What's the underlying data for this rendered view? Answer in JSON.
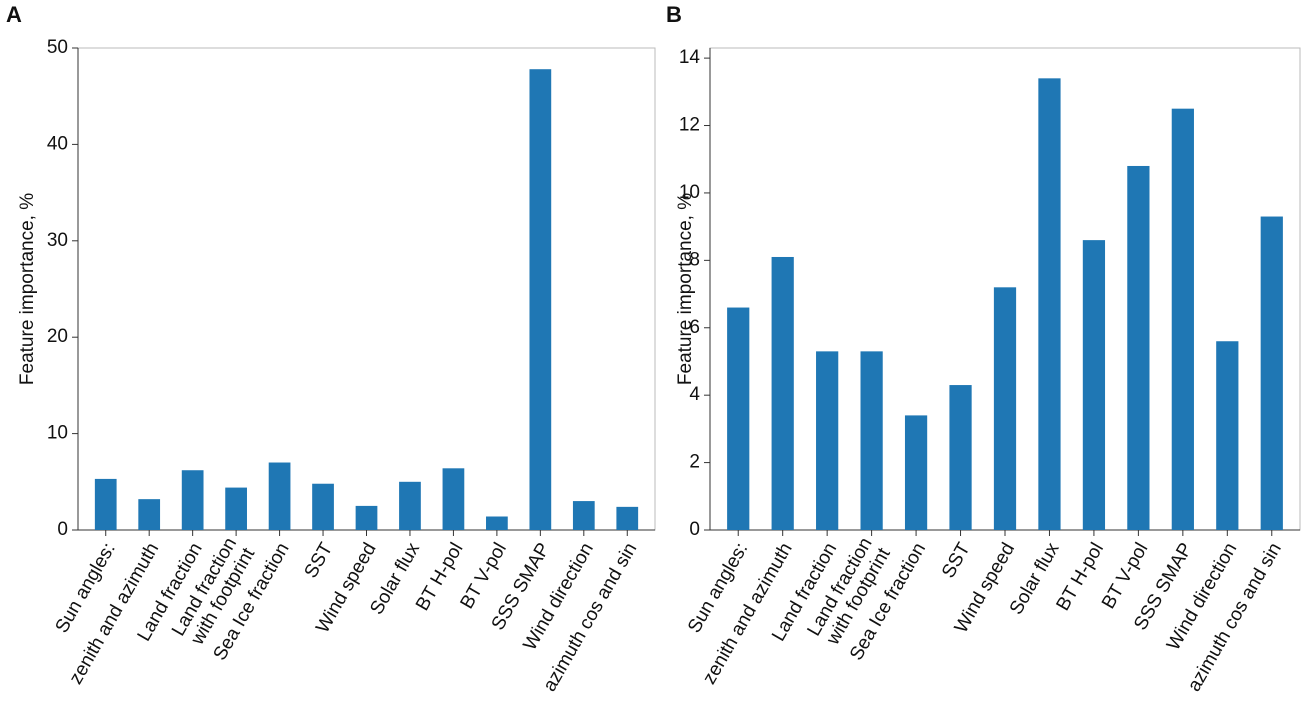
{
  "chart_data": [
    {
      "type": "bar",
      "panel": "A",
      "y_label": "Feature importance, %",
      "color": "#1f77b4",
      "categories": [
        [
          "Sun angles:"
        ],
        [
          "zenith and azimuth"
        ],
        [
          "Land fraction"
        ],
        [
          "Land fraction",
          "with footprint"
        ],
        [
          "Sea Ice fraction"
        ],
        [
          "SST"
        ],
        [
          "Wind speed"
        ],
        [
          "Solar flux"
        ],
        [
          "BT H-pol"
        ],
        [
          "BT V-pol"
        ],
        [
          "SSS SMAP"
        ],
        [
          "Wind direction"
        ],
        [
          "azimuth cos and sin"
        ]
      ],
      "values": [
        5.3,
        3.2,
        6.2,
        4.4,
        7.0,
        4.8,
        2.5,
        5.0,
        6.4,
        1.4,
        47.8,
        3.0,
        2.4
      ],
      "ylim": [
        0,
        50
      ],
      "yticks": [
        0,
        10,
        20,
        30,
        40,
        50
      ]
    },
    {
      "type": "bar",
      "panel": "B",
      "y_label": "Feature importance, %",
      "color": "#1f77b4",
      "categories": [
        [
          "Sun angles:"
        ],
        [
          "zenith and azimuth"
        ],
        [
          "Land fraction"
        ],
        [
          "Land fraction",
          "with footprint"
        ],
        [
          "Sea Ice fraction"
        ],
        [
          "SST"
        ],
        [
          "Wind speed"
        ],
        [
          "Solar flux"
        ],
        [
          "BT H-pol"
        ],
        [
          "BT V-pol"
        ],
        [
          "SSS SMAP"
        ],
        [
          "Wind direction"
        ],
        [
          "azimuth cos and sin"
        ]
      ],
      "values": [
        6.6,
        8.1,
        5.3,
        5.3,
        3.4,
        4.3,
        7.2,
        13.4,
        8.6,
        10.8,
        12.5,
        5.6,
        9.3
      ],
      "ylim": [
        0,
        14.3
      ],
      "yticks": [
        0,
        2,
        4,
        6,
        8,
        10,
        12,
        14
      ]
    }
  ]
}
